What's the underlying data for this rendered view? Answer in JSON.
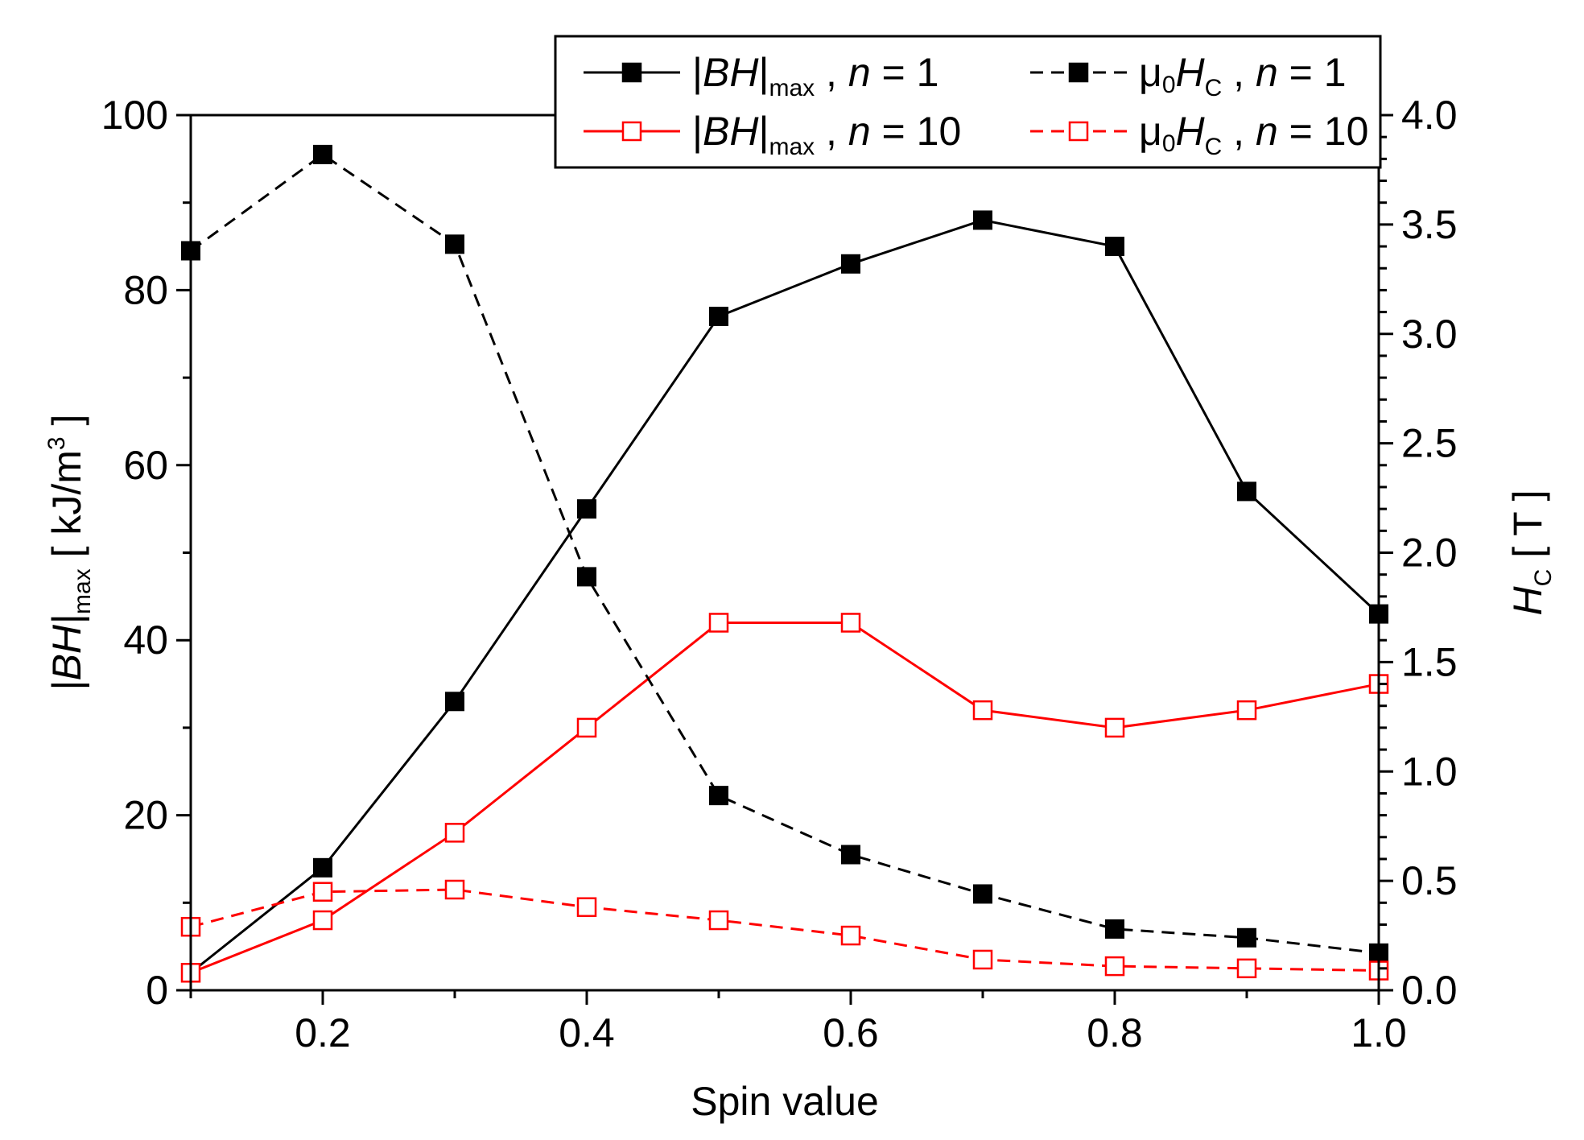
{
  "chart_data": {
    "type": "line",
    "x": [
      0.1,
      0.2,
      0.3,
      0.4,
      0.5,
      0.6,
      0.7,
      0.8,
      0.9,
      1.0
    ],
    "xlabel": "Spin value",
    "xlim": [
      0.1,
      1.0
    ],
    "xticks": [
      0.2,
      0.4,
      0.6,
      0.8,
      1.0
    ],
    "xtick_labels": [
      "0.2",
      "0.4",
      "0.6",
      "0.8",
      "1.0"
    ],
    "ylabel_left": {
      "main": "|BH|",
      "sub": "max",
      "unit_pre": " [ kJ/m",
      "unit_sup": "3",
      "unit_post": " ]"
    },
    "ylim_left": [
      0,
      100
    ],
    "yticks_left": [
      0,
      20,
      40,
      60,
      80,
      100
    ],
    "ytick_labels_left": [
      "0",
      "20",
      "40",
      "60",
      "80",
      "100"
    ],
    "ylabel_right": {
      "main": "H",
      "sub": "C",
      "unit": " [ T ]"
    },
    "ylim_right": [
      0.0,
      4.0
    ],
    "yticks_right": [
      0.0,
      0.5,
      1.0,
      1.5,
      2.0,
      2.5,
      3.0,
      3.5,
      4.0
    ],
    "ytick_labels_right": [
      "0.0",
      "0.5",
      "1.0",
      "1.5",
      "2.0",
      "2.5",
      "3.0",
      "3.5",
      "4.0"
    ],
    "grid": false,
    "legend_position": "top-right",
    "series": [
      {
        "name": "|BH|max , n = 1",
        "axis": "left",
        "color": "#000000",
        "dashed": false,
        "filled": true,
        "values": [
          2,
          14,
          33,
          55,
          77,
          83,
          88,
          85,
          57,
          43
        ],
        "legend": {
          "prefix": "|",
          "italic": "BH",
          "mid": "|",
          "sub": "max",
          "post": " , ",
          "nvar": "n",
          "eq": " = 1"
        }
      },
      {
        "name": "|BH|max , n = 10",
        "axis": "left",
        "color": "#ff0000",
        "dashed": false,
        "filled": false,
        "values": [
          2,
          8,
          18,
          30,
          42,
          42,
          32,
          30,
          32,
          35
        ],
        "legend": {
          "prefix": "|",
          "italic": "BH",
          "mid": "|",
          "sub": "max",
          "post": " , ",
          "nvar": "n",
          "eq": " = 10"
        }
      },
      {
        "name": "μ0HC , n = 1",
        "axis": "right",
        "color": "#000000",
        "dashed": true,
        "filled": true,
        "values": [
          3.38,
          3.82,
          3.41,
          1.89,
          0.89,
          0.62,
          0.44,
          0.28,
          0.24,
          0.17
        ],
        "legend": {
          "prefix": "μ",
          "pre_sub": "0",
          "italic": "H",
          "sub": "C",
          "post": " , ",
          "nvar": "n",
          "eq": " = 1"
        }
      },
      {
        "name": "μ0HC , n = 10",
        "axis": "right",
        "color": "#ff0000",
        "dashed": true,
        "filled": false,
        "values": [
          0.29,
          0.45,
          0.46,
          0.38,
          0.32,
          0.25,
          0.14,
          0.11,
          0.1,
          0.09
        ],
        "legend": {
          "prefix": "μ",
          "pre_sub": "0",
          "italic": "H",
          "sub": "C",
          "post": " , ",
          "nvar": "n",
          "eq": " = 10"
        }
      }
    ]
  }
}
